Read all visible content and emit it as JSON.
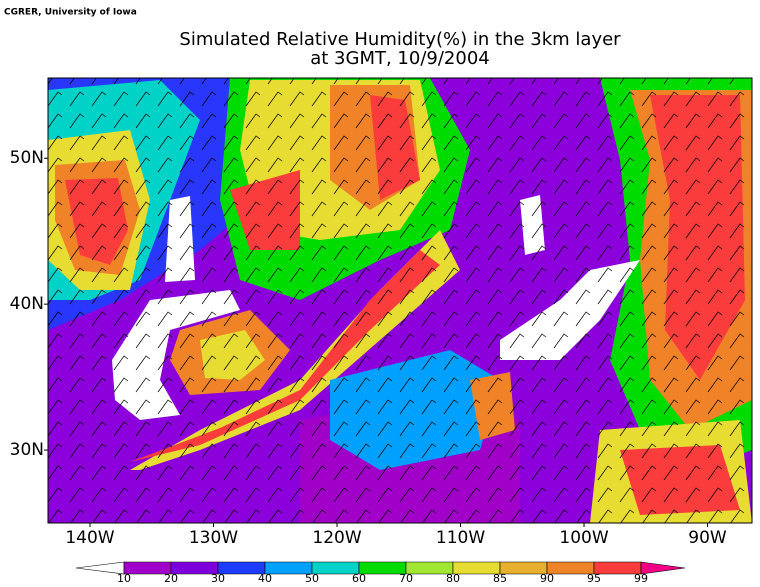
{
  "credit": "CGRER, University of Iowa",
  "title": [
    "Simulated Relative Humidity(%) in the 3km layer",
    "at 3GMT, 10/9/2004"
  ],
  "map": {
    "lat_range": [
      25,
      55.5
    ],
    "lon_range": [
      -143.4,
      -86.4
    ],
    "lat_ticks": [
      {
        "value": 50,
        "label": "50N"
      },
      {
        "value": 40,
        "label": "40N"
      },
      {
        "value": 30,
        "label": "30N"
      }
    ],
    "lon_ticks": [
      {
        "value": -140,
        "label": "140W"
      },
      {
        "value": -130,
        "label": "130W"
      },
      {
        "value": -120,
        "label": "120W"
      },
      {
        "value": -110,
        "label": "110W"
      },
      {
        "value": -100,
        "label": "100W"
      },
      {
        "value": -90,
        "label": "90W"
      }
    ]
  },
  "colorbar": {
    "levels": [
      10,
      20,
      30,
      40,
      50,
      60,
      70,
      80,
      85,
      90,
      95,
      99
    ],
    "colors": [
      "#ffffff",
      "#a000c8",
      "#7d00dc",
      "#1e3cff",
      "#00a0ff",
      "#00d2c8",
      "#00dc00",
      "#a0e632",
      "#e6dc32",
      "#e6af2d",
      "#f08228",
      "#fa3c3c",
      "#f00082"
    ]
  }
}
